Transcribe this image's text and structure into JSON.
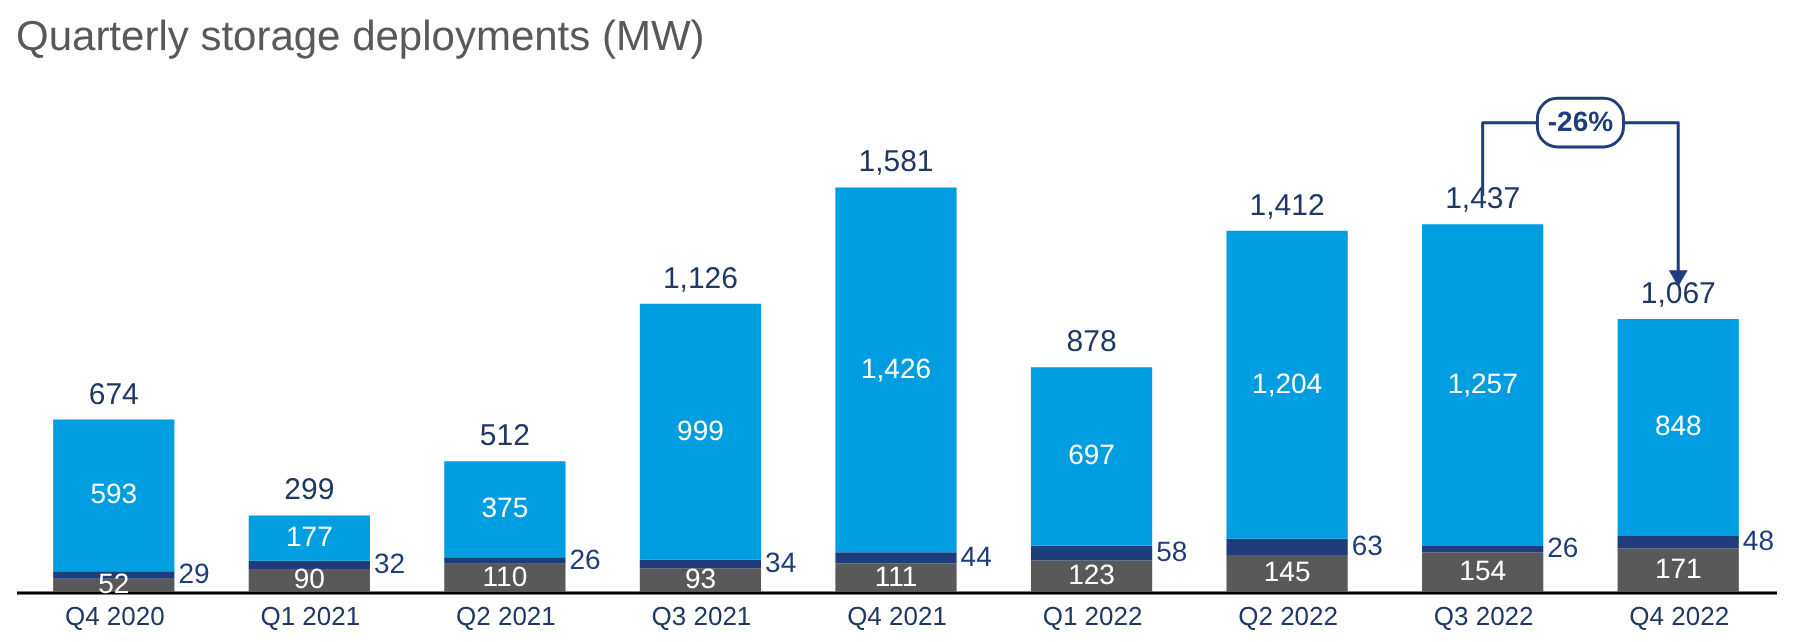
{
  "chart_data": {
    "type": "bar",
    "title": "Quarterly storage deployments (MW)",
    "categories": [
      "Q4 2020",
      "Q1 2021",
      "Q2 2021",
      "Q3 2021",
      "Q4 2021",
      "Q1 2022",
      "Q2 2022",
      "Q3 2022",
      "Q4 2022"
    ],
    "stacked": true,
    "series": [
      {
        "color": "#595959",
        "values": [
          52,
          90,
          110,
          93,
          111,
          123,
          145,
          154,
          171
        ],
        "value_labels": [
          "52",
          "90",
          "110",
          "93",
          "111",
          "123",
          "145",
          "154",
          "171"
        ]
      },
      {
        "color": "#1f3d7a",
        "values": [
          29,
          32,
          26,
          34,
          44,
          58,
          63,
          26,
          48
        ],
        "value_labels": [
          "29",
          "32",
          "26",
          "34",
          "44",
          "58",
          "63",
          "26",
          "48"
        ]
      },
      {
        "color": "#009ee0",
        "values": [
          593,
          177,
          375,
          999,
          1426,
          697,
          1204,
          1257,
          848
        ],
        "value_labels": [
          "593",
          "177",
          "375",
          "999",
          "1,426",
          "697",
          "1,204",
          "1,257",
          "848"
        ]
      }
    ],
    "totals": [
      "674",
      "299",
      "512",
      "1,126",
      "1,581",
      "878",
      "1,412",
      "1,437",
      "1,067"
    ],
    "annotations": [
      "-26%"
    ]
  }
}
